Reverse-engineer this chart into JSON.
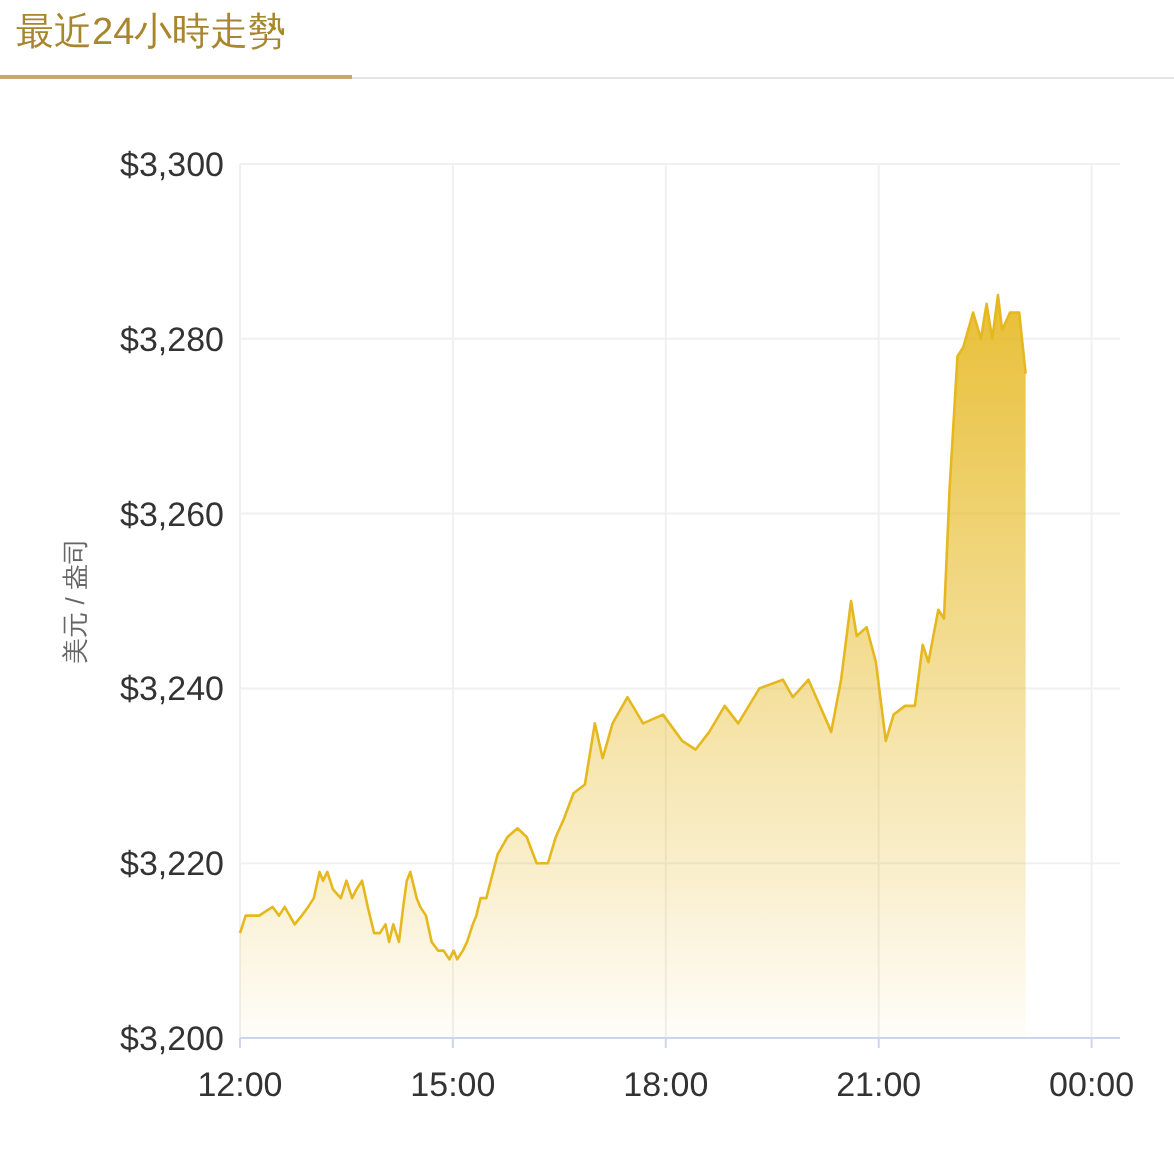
{
  "chart_data": {
    "type": "area",
    "title": "最近24小時走勢",
    "ylabel": "美元 / 盎司",
    "color": "#e6b820",
    "x": [
      12.0,
      12.08,
      12.27,
      12.46,
      12.55,
      12.63,
      12.77,
      12.87,
      12.96,
      13.04,
      13.12,
      13.17,
      13.23,
      13.31,
      13.42,
      13.5,
      13.58,
      13.64,
      13.72,
      13.8,
      13.89,
      13.97,
      14.05,
      14.1,
      14.16,
      14.24,
      14.3,
      14.35,
      14.4,
      14.49,
      14.54,
      14.62,
      14.7,
      14.79,
      14.87,
      14.95,
      15.01,
      15.06,
      15.14,
      15.2,
      15.28,
      15.33,
      15.39,
      15.47,
      15.63,
      15.77,
      15.91,
      16.04,
      16.18,
      16.34,
      16.45,
      16.56,
      16.7,
      16.86,
      17.0,
      17.11,
      17.25,
      17.46,
      17.68,
      17.96,
      18.23,
      18.42,
      18.61,
      18.83,
      19.02,
      19.32,
      19.65,
      19.79,
      20.01,
      20.28,
      20.33,
      20.47,
      20.61,
      20.69,
      20.83,
      20.96,
      21.1,
      21.21,
      21.37,
      21.51,
      21.62,
      21.7,
      21.84,
      21.92,
      22.0,
      22.11,
      22.19,
      22.33,
      22.44,
      22.52,
      22.6,
      22.68,
      22.74,
      22.85,
      22.98,
      23.07
    ],
    "values": [
      3212,
      3214,
      3214,
      3215,
      3214,
      3215,
      3213,
      3214,
      3215,
      3216,
      3219,
      3218,
      3219,
      3217,
      3216,
      3218,
      3216,
      3217,
      3218,
      3215,
      3212,
      3212,
      3213,
      3211,
      3213,
      3211,
      3215,
      3218,
      3219,
      3216,
      3215,
      3214,
      3211,
      3210,
      3210,
      3209,
      3210,
      3209,
      3210,
      3211,
      3213,
      3214,
      3216,
      3216,
      3221,
      3223,
      3224,
      3223,
      3220,
      3220,
      3223,
      3225,
      3228,
      3229,
      3236,
      3232,
      3236,
      3239,
      3236,
      3237,
      3234,
      3233,
      3235,
      3238,
      3236,
      3240,
      3241,
      3239,
      3241,
      3236,
      3235,
      3241,
      3250,
      3246,
      3247,
      3243,
      3234,
      3237,
      3238,
      3238,
      3245,
      3243,
      3249,
      3248,
      3263,
      3278,
      3279,
      3283,
      3280,
      3284,
      3280,
      3285,
      3281,
      3283,
      3283,
      3276
    ],
    "xlim": [
      12,
      24.4
    ],
    "xticks": [
      {
        "value": 12,
        "label": "12:00"
      },
      {
        "value": 15,
        "label": "15:00"
      },
      {
        "value": 18,
        "label": "18:00"
      },
      {
        "value": 21,
        "label": "21:00"
      },
      {
        "value": 24,
        "label": "00:00"
      }
    ],
    "ylim": [
      3200,
      3300
    ],
    "yticks": [
      {
        "value": 3200,
        "label": "$3,200"
      },
      {
        "value": 3220,
        "label": "$3,220"
      },
      {
        "value": 3240,
        "label": "$3,240"
      },
      {
        "value": 3260,
        "label": "$3,260"
      },
      {
        "value": 3280,
        "label": "$3,280"
      },
      {
        "value": 3300,
        "label": "$3,300"
      }
    ],
    "grid": true
  }
}
